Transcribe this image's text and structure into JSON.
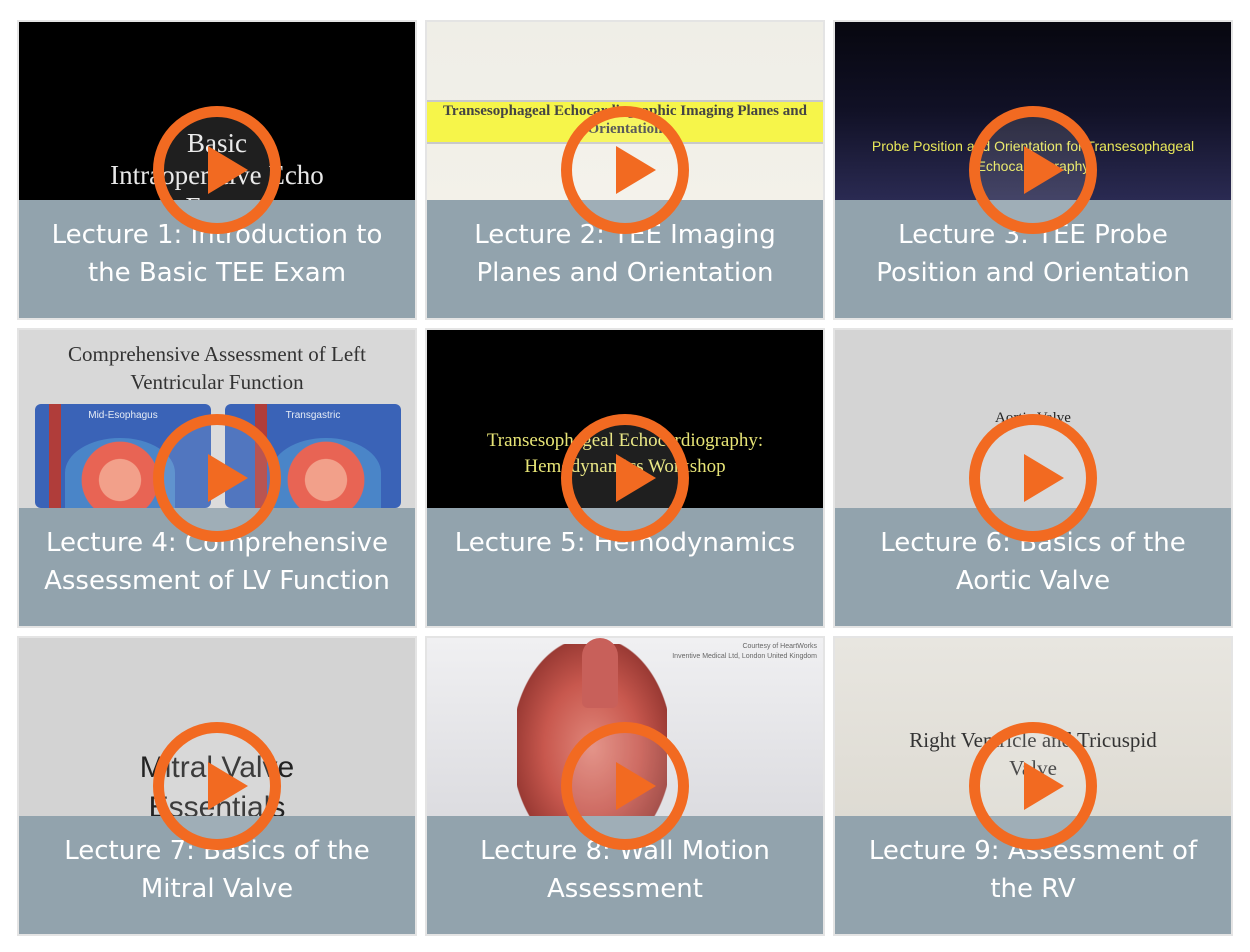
{
  "lectures": [
    {
      "caption": "Lecture 1: Introduction to the Basic TEE Exam",
      "thumb_text": "Basic\nIntraoperative Echo\nExam"
    },
    {
      "caption": "Lecture 2: TEE Imaging Planes and Orientation",
      "thumb_text": "Transesophageal Echocardiographic Imaging Planes and Orientation"
    },
    {
      "caption": "Lecture 3: TEE Probe Position and Orientation",
      "thumb_text": "Probe Position and Orientation for Transesophageal Echocardiography"
    },
    {
      "caption": "Lecture 4: Comprehensive Assessment of LV Function",
      "thumb_text": "Comprehensive Assessment of Left Ventricular Function",
      "thumb_labels": [
        "Mid-Esophagus",
        "Transgastric"
      ]
    },
    {
      "caption": "Lecture 5: Hemodynamics",
      "thumb_text": "Transesophageal Echocardiography: Hemodynamics Workshop"
    },
    {
      "caption": "Lecture 6: Basics of the Aortic Valve",
      "thumb_text": "Aortic Valve"
    },
    {
      "caption": "Lecture 7: Basics of the Mitral Valve",
      "thumb_text": "Mitral Valve\nEssentials"
    },
    {
      "caption": "Lecture 8: Wall Motion Assessment",
      "thumb_text": "Courtesy of HeartWorks\nInventive Medical Ltd, London United Kingdom"
    },
    {
      "caption": "Lecture 9: Assessment of the RV",
      "thumb_text": "Right Ventricle and Tricuspid Valve"
    }
  ],
  "colors": {
    "play_icon": "#f26a21",
    "caption_bg": "#92a3ad",
    "caption_text": "#ffffff",
    "card_border": "#e4e4e4"
  },
  "icons": {
    "play": "play-button-icon"
  }
}
